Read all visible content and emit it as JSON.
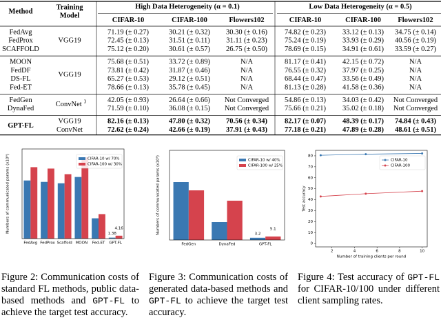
{
  "table": {
    "header": {
      "method": "Method",
      "model": [
        "Training",
        "Model"
      ],
      "groups": [
        {
          "title": "High Data Heterogeneity (α = 0.1)",
          "columns": [
            "CIFAR-10",
            "CIFAR-100",
            "Flowers102"
          ]
        },
        {
          "title": "Low Data Heterogeneity (α = 0.5)",
          "columns": [
            "CIFAR-10",
            "CIFAR-100",
            "Flowers102"
          ]
        }
      ]
    },
    "groups": [
      {
        "methods": [
          "FedAvg",
          "FedProx",
          "SCAFFOLD"
        ],
        "models": [
          "VGG19"
        ],
        "rows": [
          [
            "71.19 (± 0.27)",
            "30.21 (± 0.32)",
            "30.30 (± 0.16)",
            "74.82 (± 0.23)",
            "33.12 (± 0.13)",
            "34.75 (± 0.14)"
          ],
          [
            "72.45 (± 0.13)",
            "31.51 (± 0.11)",
            "31.11 (± 0.23)",
            "75.24 (± 0.19)",
            "33.93 (± 0.29)",
            "40.56 (± 0.19)"
          ],
          [
            "75.12 (± 0.20)",
            "30.61 (± 0.57)",
            "26.75 (± 0.50)",
            "78.69 (± 0.15)",
            "34.91 (± 0.61)",
            "33.59 (± 0.27)"
          ]
        ]
      },
      {
        "methods": [
          "MOON",
          "FedDF",
          "DS-FL",
          "Fed-ET"
        ],
        "models": [
          "VGG19"
        ],
        "rows": [
          [
            "75.68 (± 0.51)",
            "33.72 (± 0.89)",
            "N/A",
            "81.17 (± 0.41)",
            "42.15 (± 0.72)",
            "N/A"
          ],
          [
            "73.81 (± 0.42)",
            "31.87 (± 0.46)",
            "N/A",
            "76.55 (± 0.32)",
            "37.97 (± 0.25)",
            "N/A"
          ],
          [
            "65.27 (± 0.53)",
            "29.12 (± 0.51)",
            "N/A",
            "68.44 (± 0.47)",
            "33.56 (± 0.49)",
            "N/A"
          ],
          [
            "78.66 (± 0.13)",
            "35.78 (± 0.45)",
            "N/A",
            "81.13 (± 0.28)",
            "41.58 (± 0.36)",
            "N/A"
          ]
        ]
      },
      {
        "methods": [
          "FedGen",
          "DynaFed"
        ],
        "models": [
          "ConvNet"
        ],
        "model_sup": "3",
        "rows": [
          [
            "42.05 (± 0.93)",
            "26.64 (± 0.66)",
            "Not Converged",
            "54.86 (± 0.13)",
            "34.03 (± 0.42)",
            "Not Converged"
          ],
          [
            "71.59 (± 0.10)",
            "36.08 (± 0.15)",
            "Not Converged",
            "75.66 (± 0.21)",
            "35.02 (± 0.18)",
            "Not Converged"
          ]
        ]
      },
      {
        "methods": [
          "GPT-FL"
        ],
        "models": [
          "VGG19",
          "ConvNet"
        ],
        "bold": true,
        "rows": [
          [
            "82.16 (± 0.13)",
            "47.80 (± 0.32)",
            "70.56 (± 0.34)",
            "82.17 (± 0.07)",
            "48.39 (± 0.17)",
            "74.84 (± 0.43)"
          ],
          [
            "72.62 (± 0.24)",
            "42.66 (± 0.19)",
            "37.91 (± 0.43)",
            "77.18 (± 0.21)",
            "47.89 (± 0.28)",
            "48.61 (± 0.51)"
          ]
        ]
      }
    ]
  },
  "figures": [
    {
      "chart_data": {
        "type": "bar",
        "y_label": "Numbers of communicated params (x10⁸)",
        "categories": [
          "FedAvg",
          "FedProx",
          "Scaffold",
          "MOON",
          "Fed-ET",
          "GPT-FL"
        ],
        "series": [
          {
            "name": "CIFAR-10 w/ 70%",
            "color": "#3a78b2",
            "values": [
              83,
              81,
              79,
              88,
              29,
              1.38
            ],
            "value_labels": [
              null,
              null,
              null,
              null,
              null,
              "1.38"
            ]
          },
          {
            "name": "CIFAR-100 w/ 30%",
            "color": "#d5434d",
            "values": [
              102,
              100,
              92,
              116,
              35,
              4.16
            ],
            "value_labels": [
              null,
              null,
              null,
              null,
              null,
              "4.16"
            ]
          }
        ],
        "ylim": [
          0,
          128
        ],
        "legend": "upper right"
      },
      "caption": [
        "Figure 2: Communication costs of standard FL methods, public data-based methods and ",
        "GPT-FL",
        " to achieve the target test accuracy."
      ]
    },
    {
      "chart_data": {
        "type": "bar",
        "y_label": "Numbers of communicated params (x10⁸)",
        "categories": [
          "FedGen",
          "DynaFed",
          "GPT-FL"
        ],
        "series": [
          {
            "name": "CIFAR-10 w/ 40%",
            "color": "#3a78b2",
            "values": [
              84,
              26,
              3.2
            ],
            "value_labels": [
              null,
              null,
              "3.2"
            ]
          },
          {
            "name": "CIFAR-100 w/ 25%",
            "color": "#d5434d",
            "values": [
              72,
              57,
              5.1
            ],
            "value_labels": [
              null,
              null,
              "5.1"
            ]
          }
        ],
        "ylim": [
          0,
          130
        ],
        "legend": "upper right"
      },
      "caption": [
        "Figure 3: Communication costs of generated data-based methods and ",
        "GPT-FL",
        " to achieve the target test accuracy."
      ]
    },
    {
      "chart_data": {
        "type": "line",
        "x_label": "Number of training clients per round",
        "y_label": "Test accuracy",
        "x": [
          1,
          5,
          10
        ],
        "series": [
          {
            "name": "CIFAR-10",
            "color": "#3a78b2",
            "values": [
              80.5,
              81.5,
              82.2
            ]
          },
          {
            "name": "CIFAR-100",
            "color": "#d5434d",
            "values": [
              43,
              45.5,
              47.8
            ]
          }
        ],
        "xlim": [
          0.55,
          10.45
        ],
        "xticks": [
          2,
          4,
          6,
          8,
          10
        ],
        "ylim": [
          -3,
          85
        ],
        "yticks": [
          0,
          10,
          20,
          30,
          40,
          50,
          60,
          70,
          80
        ],
        "legend": "upper right"
      },
      "caption": [
        "Figure 4: Test accuracy of ",
        "GPT-FL",
        " for CIFAR-10/100 under different client sampling rates."
      ]
    }
  ]
}
